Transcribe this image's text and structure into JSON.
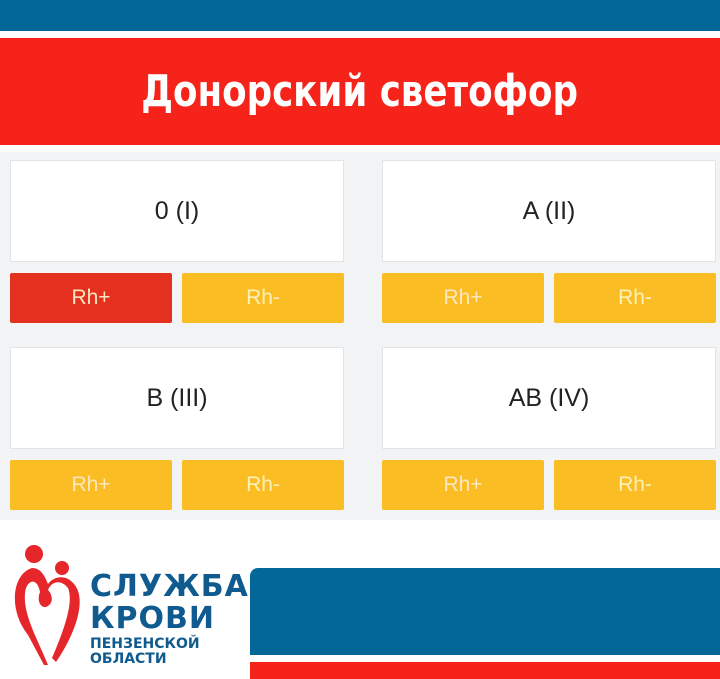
{
  "header": {
    "title": "Донорский светофор"
  },
  "groups": [
    {
      "label": "0 (I)",
      "rh_pos": {
        "label": "Rh+",
        "status_color": "#e4301f"
      },
      "rh_neg": {
        "label": "Rh-",
        "status_color": "#fbbd24"
      }
    },
    {
      "label": "A (II)",
      "rh_pos": {
        "label": "Rh+",
        "status_color": "#fbbd24"
      },
      "rh_neg": {
        "label": "Rh-",
        "status_color": "#fbbd24"
      }
    },
    {
      "label": "B (III)",
      "rh_pos": {
        "label": "Rh+",
        "status_color": "#fbbd24"
      },
      "rh_neg": {
        "label": "Rh-",
        "status_color": "#fbbd24"
      }
    },
    {
      "label": "AB (IV)",
      "rh_pos": {
        "label": "Rh+",
        "status_color": "#fbbd24"
      },
      "rh_neg": {
        "label": "Rh-",
        "status_color": "#fbbd24"
      }
    }
  ],
  "logo": {
    "line1": "СЛУЖБА",
    "line2": "КРОВИ",
    "line3": "ПЕНЗЕНСКОЙ",
    "line4": "ОБЛАСТИ"
  },
  "colors": {
    "blue": "#04679a",
    "red": "#f6231b",
    "critical": "#e4301f",
    "warning": "#fbbd24"
  }
}
